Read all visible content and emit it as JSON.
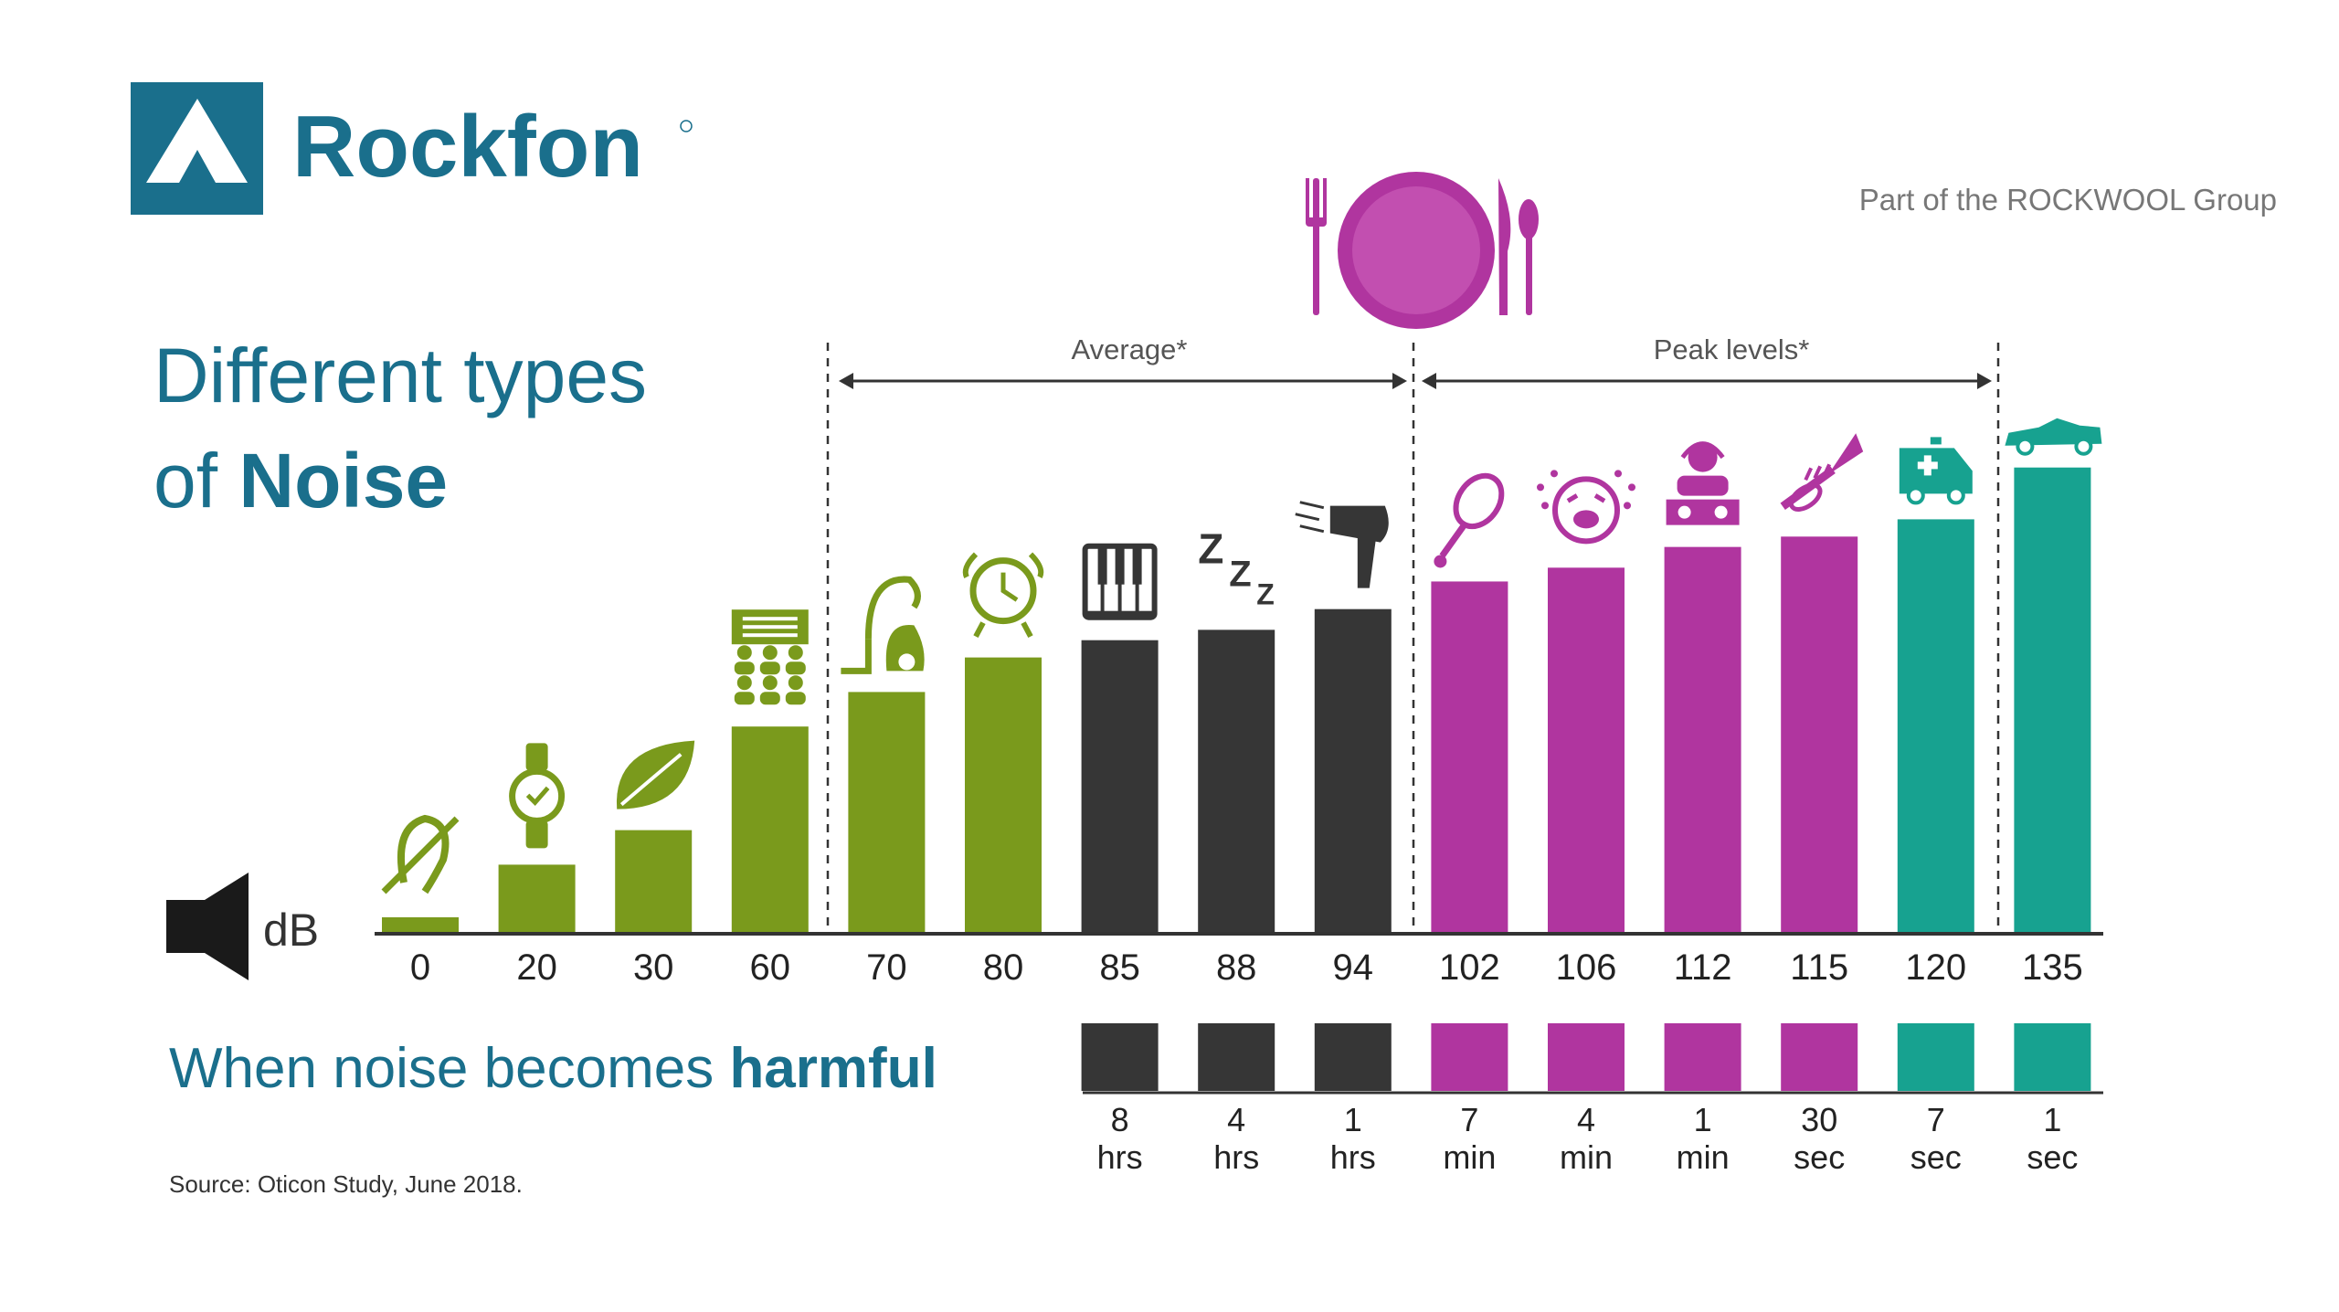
{
  "brand": {
    "name": "Rockfon",
    "tagline": "Part of the ROCKWOOL Group",
    "color": "#1a6f8c"
  },
  "title": {
    "line1": "Different types",
    "line2_prefix": "of ",
    "line2_bold": "Noise"
  },
  "unit_label": "dB",
  "subtitle": {
    "prefix": "When noise becomes ",
    "bold": "harmful"
  },
  "source": "Source: Oticon Study, June 2018.",
  "ranges": {
    "average_label": "Average*",
    "peak_label": "Peak levels*"
  },
  "colors": {
    "green": "#7a9a1c",
    "dark": "#363636",
    "magenta": "#b0359f",
    "teal": "#17a290",
    "text_teal": "#1a6f8c",
    "gray_text": "#777777"
  },
  "chart_data": {
    "type": "bar",
    "categories": [
      "0",
      "20",
      "30",
      "60",
      "70",
      "80",
      "85",
      "88",
      "94",
      "102",
      "106",
      "112",
      "115",
      "120",
      "135"
    ],
    "values": [
      0,
      20,
      30,
      60,
      70,
      80,
      85,
      88,
      94,
      102,
      106,
      112,
      115,
      120,
      135
    ],
    "colors": [
      "green",
      "green",
      "green",
      "green",
      "green",
      "green",
      "dark",
      "dark",
      "dark",
      "magenta",
      "magenta",
      "magenta",
      "magenta",
      "teal",
      "teal"
    ],
    "icons": [
      "ear-slash-icon",
      "wristwatch-icon",
      "leaf-icon",
      "office-meeting-icon",
      "vacuum-cleaner-icon",
      "alarm-clock-icon",
      "piano-keys-icon",
      "snoring-zzz-icon",
      "hair-dryer-icon",
      "tennis-racket-icon",
      "crying-baby-icon",
      "dj-icon",
      "trumpet-icon",
      "ambulance-icon",
      "race-car-icon"
    ],
    "harmful_after": [
      null,
      null,
      null,
      null,
      null,
      null,
      {
        "amount": "8",
        "unit": "hrs"
      },
      {
        "amount": "4",
        "unit": "hrs"
      },
      {
        "amount": "1",
        "unit": "hrs"
      },
      {
        "amount": "7",
        "unit": "min"
      },
      {
        "amount": "4",
        "unit": "min"
      },
      {
        "amount": "1",
        "unit": "min"
      },
      {
        "amount": "30",
        "unit": "sec"
      },
      {
        "amount": "7",
        "unit": "sec"
      },
      {
        "amount": "1",
        "unit": "sec"
      }
    ]
  }
}
